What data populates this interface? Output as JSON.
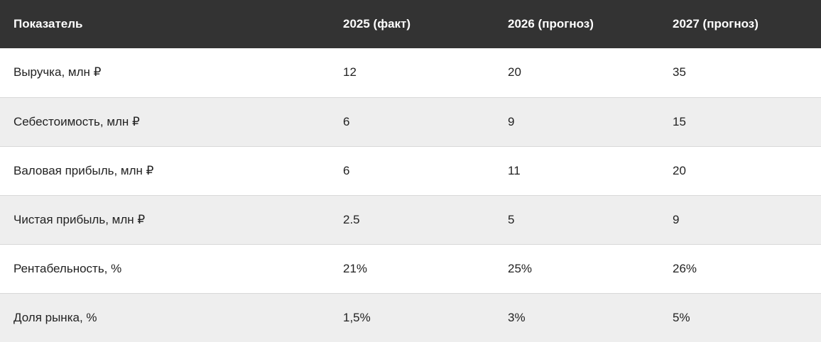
{
  "table": {
    "headers": [
      "Показатель",
      "2025 (факт)",
      "2026 (прогноз)",
      "2027 (прогноз)"
    ],
    "rows": [
      [
        "Выручка, млн ₽",
        "12",
        "20",
        "35"
      ],
      [
        "Себестоимость, млн ₽",
        "6",
        "9",
        "15"
      ],
      [
        "Валовая прибыль, млн ₽",
        "6",
        "11",
        "20"
      ],
      [
        "Чистая прибыль, млн ₽",
        "2.5",
        "5",
        "9"
      ],
      [
        "Рентабельность, %",
        "21%",
        "25%",
        "26%"
      ],
      [
        "Доля рынка, %",
        "1,5%",
        "3%",
        "5%"
      ]
    ]
  },
  "colors": {
    "header_bg": "#333333",
    "header_text": "#ffffff",
    "row_alt_bg": "#eeeeee"
  }
}
